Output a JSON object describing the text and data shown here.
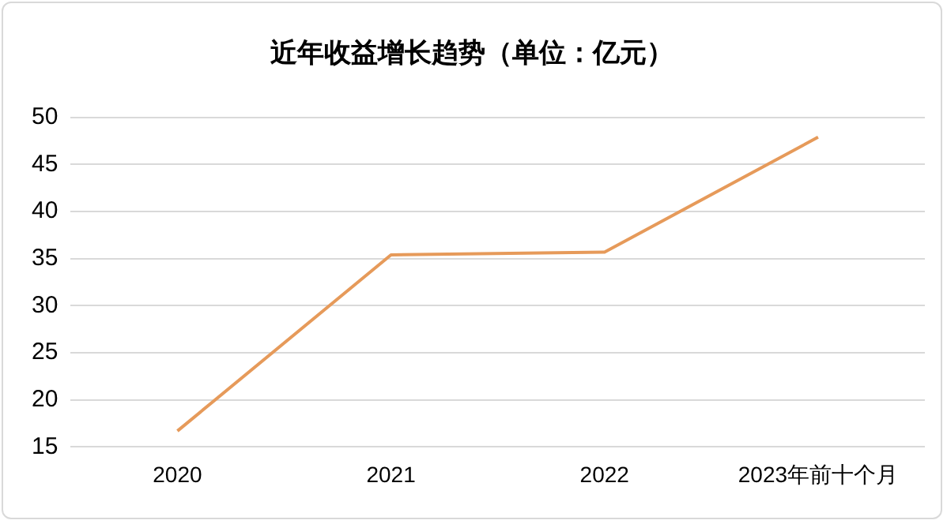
{
  "chart_data": {
    "type": "line",
    "title": "近年收益增长趋势（单位：亿元）",
    "categories": [
      "2020",
      "2021",
      "2022",
      "2023年前十个月"
    ],
    "series": [
      {
        "color": "#e69a5a",
        "values": [
          16.7,
          35.4,
          35.7,
          47.9
        ]
      }
    ],
    "ylim": [
      15,
      50
    ],
    "yticks": [
      15,
      20,
      25,
      30,
      35,
      40,
      45,
      50
    ],
    "grid": "y",
    "legend": false,
    "marker": "none",
    "line_style": "solid"
  }
}
